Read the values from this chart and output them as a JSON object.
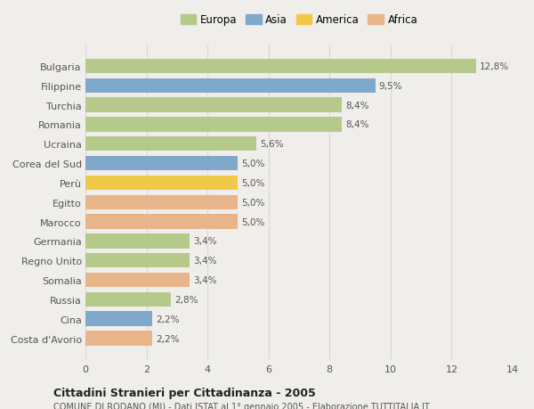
{
  "categories": [
    "Bulgaria",
    "Filippine",
    "Turchia",
    "Romania",
    "Ucraina",
    "Corea del Sud",
    "Perù",
    "Egitto",
    "Marocco",
    "Germania",
    "Regno Unito",
    "Somalia",
    "Russia",
    "Cina",
    "Costa d'Avorio"
  ],
  "values": [
    12.8,
    9.5,
    8.4,
    8.4,
    5.6,
    5.0,
    5.0,
    5.0,
    5.0,
    3.4,
    3.4,
    3.4,
    2.8,
    2.2,
    2.2
  ],
  "labels": [
    "12,8%",
    "9,5%",
    "8,4%",
    "8,4%",
    "5,6%",
    "5,0%",
    "5,0%",
    "5,0%",
    "5,0%",
    "3,4%",
    "3,4%",
    "3,4%",
    "2,8%",
    "2,2%",
    "2,2%"
  ],
  "continent": [
    "Europa",
    "Asia",
    "Europa",
    "Europa",
    "Europa",
    "Asia",
    "America",
    "Africa",
    "Africa",
    "Europa",
    "Europa",
    "Africa",
    "Europa",
    "Asia",
    "Africa"
  ],
  "colors": {
    "Europa": "#b5c98a",
    "Asia": "#7fa8cb",
    "America": "#f0c94a",
    "Africa": "#e8b48a"
  },
  "legend_order": [
    "Europa",
    "Asia",
    "America",
    "Africa"
  ],
  "title": "Cittadini Stranieri per Cittadinanza - 2005",
  "subtitle": "COMUNE DI RODANO (MI) - Dati ISTAT al 1° gennaio 2005 - Elaborazione TUTTITALIA.IT",
  "xlim": [
    0,
    14
  ],
  "xticks": [
    0,
    2,
    4,
    6,
    8,
    10,
    12,
    14
  ],
  "fig_bg": "#f0eeeb",
  "plot_bg": "#f0eeeb",
  "grid_color": "#d8d8d8",
  "text_color": "#555555",
  "label_color": "#555555"
}
